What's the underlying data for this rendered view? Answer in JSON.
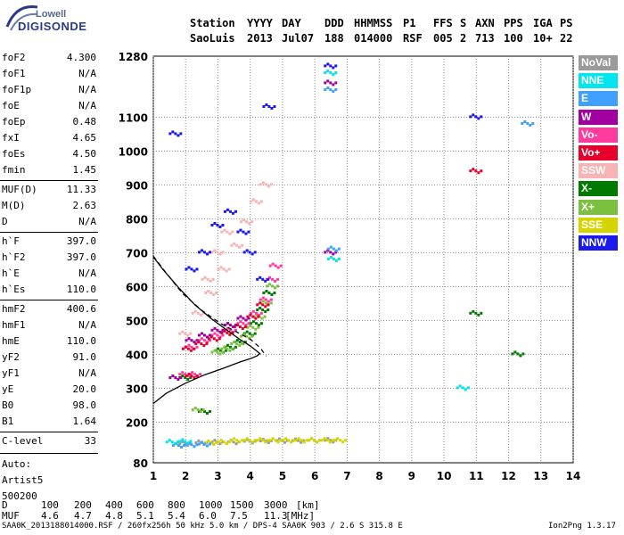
{
  "logo": {
    "line1": "Lowell",
    "line2": "DIGISONDE"
  },
  "header": {
    "labels": [
      "Station",
      "YYYY",
      "DAY",
      "DDD",
      "HHMMSS",
      "P1",
      "FFS",
      "S",
      "AXN",
      "PPS",
      "IGA",
      "PS"
    ],
    "values": [
      "SaoLuis",
      "2013",
      "Jul07",
      "188",
      "014000",
      "RSF",
      "005",
      "2",
      "713",
      "100",
      "10+",
      "22"
    ]
  },
  "params": {
    "group1": [
      {
        "name": "foF2",
        "value": "4.300"
      },
      {
        "name": "foF1",
        "value": "N/A"
      },
      {
        "name": "foF1p",
        "value": "N/A"
      },
      {
        "name": "foE",
        "value": "N/A"
      },
      {
        "name": "foEp",
        "value": "0.48"
      },
      {
        "name": "fxI",
        "value": "4.65"
      },
      {
        "name": "foEs",
        "value": "4.50"
      },
      {
        "name": "fmin",
        "value": "1.45"
      }
    ],
    "group2": [
      {
        "name": "MUF(D)",
        "value": "11.33"
      },
      {
        "name": "M(D)",
        "value": "2.63"
      },
      {
        "name": "D",
        "value": "N/A"
      }
    ],
    "group3": [
      {
        "name": "h`F",
        "value": "397.0"
      },
      {
        "name": "h`F2",
        "value": "397.0"
      },
      {
        "name": "h`E",
        "value": "N/A"
      },
      {
        "name": "h`Es",
        "value": "110.0"
      }
    ],
    "group4": [
      {
        "name": "hmF2",
        "value": "400.6"
      },
      {
        "name": "hmF1",
        "value": "N/A"
      },
      {
        "name": "hmE",
        "value": "110.0"
      },
      {
        "name": "yF2",
        "value": "91.0"
      },
      {
        "name": "yF1",
        "value": "N/A"
      },
      {
        "name": "yE",
        "value": "20.0"
      },
      {
        "name": "B0",
        "value": "98.0"
      },
      {
        "name": "B1",
        "value": "1.64"
      }
    ],
    "group5": [
      {
        "name": "C-level",
        "value": "33"
      }
    ],
    "autoscale": [
      "Auto:",
      "Artist5",
      "500200"
    ]
  },
  "legend": [
    {
      "label": "NoVal",
      "color": "#9a9a9a"
    },
    {
      "label": "NNE",
      "color": "#00e5ee"
    },
    {
      "label": "E",
      "color": "#3fa0ff"
    },
    {
      "label": "W",
      "color": "#a000a0"
    },
    {
      "label": "Vo-",
      "color": "#ff3c9e"
    },
    {
      "label": "Vo+",
      "color": "#e8002c"
    },
    {
      "label": "SSW",
      "color": "#f8b4b4"
    },
    {
      "label": "X-",
      "color": "#007a00"
    },
    {
      "label": "X+",
      "color": "#7cc040"
    },
    {
      "label": "SSE",
      "color": "#d4d400"
    },
    {
      "label": "NNW",
      "color": "#1a1aee"
    }
  ],
  "muf_table": {
    "d_label": "D",
    "d_values": [
      "100",
      "200",
      "400",
      "600",
      "800",
      "1000",
      "1500",
      "3000"
    ],
    "d_unit": "[km]",
    "muf_label": "MUF",
    "muf_values": [
      "4.6",
      "4.7",
      "4.8",
      "5.1",
      "5.4",
      "6.0",
      "7.5",
      "11.3"
    ],
    "muf_unit": "[MHz]"
  },
  "footer": {
    "left": "SAA0K_2013188014000.RSF / 260fx256h 50 kHz 5.0 km / DPS-4 SAA0K 903 / 2.6 S 315.8 E",
    "right": "Ion2Png 1.3.17"
  },
  "chart_data": {
    "type": "scatter",
    "xlim": [
      1,
      14
    ],
    "ylim": [
      80,
      1280
    ],
    "x_ticks": [
      1,
      2,
      3,
      4,
      5,
      6,
      7,
      8,
      9,
      10,
      11,
      12,
      13,
      14
    ],
    "y_ticks": [
      80,
      200,
      300,
      400,
      500,
      600,
      700,
      800,
      900,
      1000,
      1100,
      1280
    ],
    "grid": true,
    "legend_position": "right",
    "profile_curve": [
      [
        1.0,
        255
      ],
      [
        1.4,
        285
      ],
      [
        2.0,
        315
      ],
      [
        2.6,
        340
      ],
      [
        3.2,
        360
      ],
      [
        3.7,
        378
      ],
      [
        4.0,
        387
      ],
      [
        4.2,
        395
      ],
      [
        4.3,
        402
      ],
      [
        4.2,
        410
      ],
      [
        4.0,
        425
      ],
      [
        3.7,
        443
      ],
      [
        3.3,
        470
      ],
      [
        2.8,
        505
      ],
      [
        2.3,
        545
      ],
      [
        1.8,
        595
      ],
      [
        1.3,
        650
      ],
      [
        1.0,
        688
      ]
    ],
    "dashed_curve": [
      [
        1.0,
        690
      ],
      [
        1.4,
        640
      ],
      [
        1.9,
        580
      ],
      [
        2.5,
        530
      ],
      [
        3.1,
        490
      ],
      [
        3.6,
        465
      ],
      [
        4.0,
        445
      ],
      [
        4.3,
        420
      ],
      [
        4.5,
        395
      ]
    ],
    "traces": [
      {
        "name": "NoVal",
        "points": [
          [
            2.0,
            135
          ],
          [
            2.5,
            138
          ],
          [
            3.0,
            140
          ],
          [
            3.5,
            140
          ],
          [
            4.0,
            142
          ],
          [
            4.5,
            143
          ],
          [
            5.0,
            144
          ],
          [
            5.5,
            144
          ],
          [
            6.0,
            145
          ],
          [
            6.5,
            145
          ]
        ]
      },
      {
        "name": "SSE",
        "points": [
          [
            3.6,
            145
          ],
          [
            4.0,
            145
          ],
          [
            4.4,
            145
          ],
          [
            4.8,
            145
          ],
          [
            5.2,
            145
          ],
          [
            5.6,
            145
          ],
          [
            6.0,
            145
          ],
          [
            6.4,
            145
          ],
          [
            6.8,
            145
          ],
          [
            3.2,
            140
          ],
          [
            2.8,
            138
          ]
        ]
      },
      {
        "name": "X-",
        "points": [
          [
            3.1,
            410
          ],
          [
            3.4,
            420
          ],
          [
            3.7,
            435
          ],
          [
            4.0,
            460
          ],
          [
            4.2,
            490
          ],
          [
            4.4,
            530
          ],
          [
            4.6,
            580
          ],
          [
            2.6,
            230
          ],
          [
            2.0,
            330
          ],
          [
            11.0,
            520
          ],
          [
            12.3,
            400
          ]
        ]
      },
      {
        "name": "X+",
        "points": [
          [
            3.0,
            405
          ],
          [
            3.3,
            415
          ],
          [
            3.6,
            430
          ],
          [
            3.9,
            452
          ],
          [
            4.1,
            478
          ],
          [
            4.3,
            510
          ],
          [
            4.5,
            550
          ],
          [
            4.7,
            600
          ],
          [
            2.4,
            235
          ]
        ]
      },
      {
        "name": "Vo-",
        "points": [
          [
            2.2,
            420
          ],
          [
            2.6,
            440
          ],
          [
            3.0,
            455
          ],
          [
            3.4,
            470
          ],
          [
            3.8,
            490
          ],
          [
            4.2,
            520
          ],
          [
            4.5,
            560
          ],
          [
            4.7,
            620
          ],
          [
            4.8,
            660
          ],
          [
            2.0,
            340
          ],
          [
            2.3,
            340
          ]
        ]
      },
      {
        "name": "Vo+",
        "points": [
          [
            2.1,
            415
          ],
          [
            2.5,
            430
          ],
          [
            2.9,
            445
          ],
          [
            3.3,
            462
          ],
          [
            3.7,
            480
          ],
          [
            4.1,
            510
          ],
          [
            4.4,
            545
          ],
          [
            2.2,
            335
          ],
          [
            11.0,
            940
          ]
        ]
      },
      {
        "name": "SSW",
        "points": [
          [
            2.0,
            460
          ],
          [
            2.4,
            520
          ],
          [
            2.8,
            580
          ],
          [
            3.2,
            650
          ],
          [
            3.6,
            720
          ],
          [
            3.9,
            790
          ],
          [
            4.2,
            850
          ],
          [
            4.5,
            900
          ],
          [
            2.7,
            620
          ],
          [
            3.0,
            700
          ],
          [
            3.3,
            760
          ]
        ]
      },
      {
        "name": "W",
        "points": [
          [
            2.2,
            440
          ],
          [
            2.6,
            455
          ],
          [
            3.0,
            470
          ],
          [
            3.4,
            485
          ],
          [
            3.8,
            505
          ],
          [
            1.7,
            330
          ],
          [
            6.5,
            1200
          ],
          [
            6.5,
            700
          ]
        ]
      },
      {
        "name": "E",
        "points": [
          [
            1.8,
            130
          ],
          [
            2.2,
            132
          ],
          [
            2.6,
            134
          ],
          [
            6.5,
            1180
          ],
          [
            6.6,
            710
          ],
          [
            12.6,
            1080
          ]
        ]
      },
      {
        "name": "NNE",
        "points": [
          [
            1.6,
            140
          ],
          [
            2.0,
            142
          ],
          [
            6.5,
            1230
          ],
          [
            6.6,
            680
          ],
          [
            10.6,
            300
          ]
        ]
      },
      {
        "name": "NNW",
        "points": [
          [
            2.2,
            650
          ],
          [
            2.6,
            700
          ],
          [
            3.0,
            780
          ],
          [
            3.4,
            820
          ],
          [
            3.8,
            760
          ],
          [
            4.0,
            700
          ],
          [
            4.4,
            620
          ],
          [
            4.6,
            1130
          ],
          [
            6.5,
            1250
          ],
          [
            1.7,
            1050
          ],
          [
            11.0,
            1100
          ]
        ]
      }
    ]
  }
}
